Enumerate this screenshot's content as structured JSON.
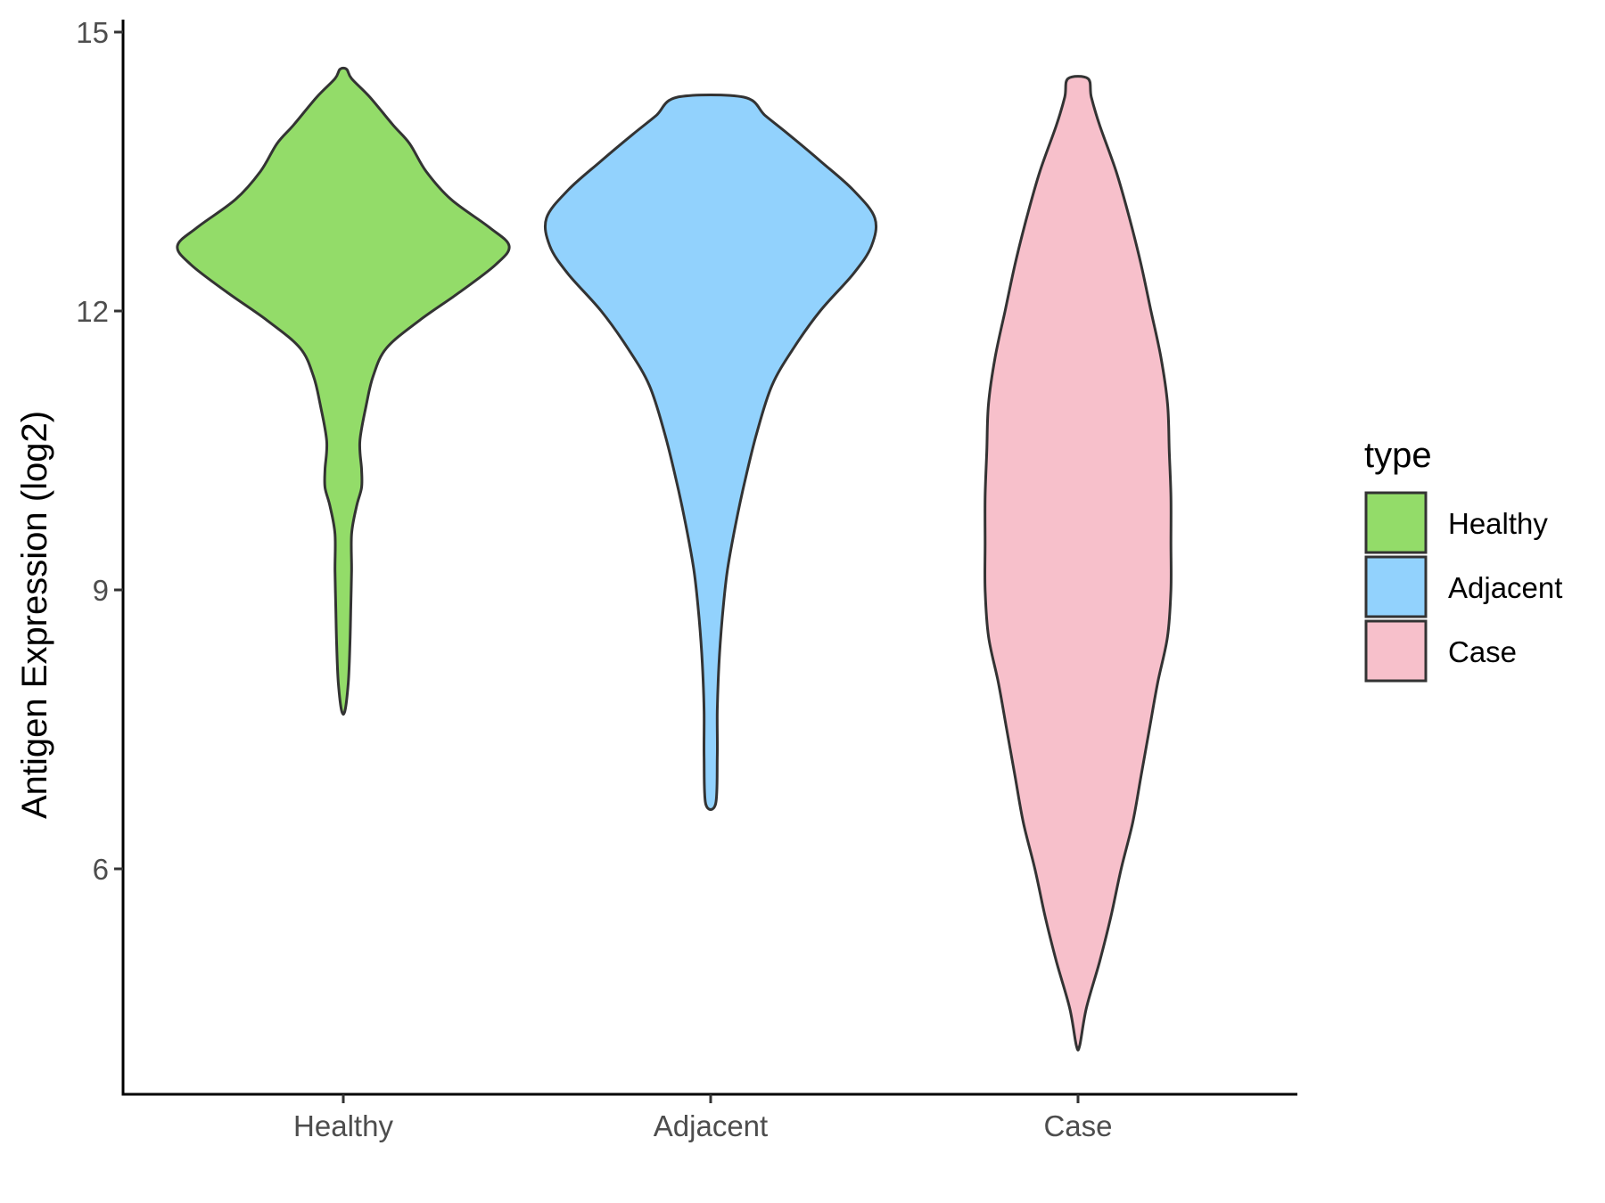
{
  "chart_data": {
    "type": "violin",
    "xlabel": "",
    "ylabel": "Antigen Expression (log2)",
    "ylim": [
      3.2,
      15.1
    ],
    "yticks": [
      6,
      9,
      12,
      15
    ],
    "categories": [
      "Healthy",
      "Adjacent",
      "Case"
    ],
    "grid": false,
    "legend": {
      "title": "type",
      "position": "right",
      "entries": [
        "Healthy",
        "Adjacent",
        "Case"
      ]
    },
    "series": [
      {
        "name": "Healthy",
        "color": "#93DC69",
        "min": 7.7,
        "max": 14.6,
        "density": [
          [
            7.7,
            0.01
          ],
          [
            8.0,
            0.03
          ],
          [
            8.4,
            0.04
          ],
          [
            8.8,
            0.045
          ],
          [
            9.2,
            0.05
          ],
          [
            9.6,
            0.05
          ],
          [
            9.9,
            0.08
          ],
          [
            10.1,
            0.11
          ],
          [
            10.3,
            0.11
          ],
          [
            10.6,
            0.1
          ],
          [
            11.0,
            0.14
          ],
          [
            11.3,
            0.18
          ],
          [
            11.6,
            0.26
          ],
          [
            11.9,
            0.46
          ],
          [
            12.2,
            0.7
          ],
          [
            12.5,
            0.92
          ],
          [
            12.7,
            1.0
          ],
          [
            12.9,
            0.88
          ],
          [
            13.2,
            0.65
          ],
          [
            13.5,
            0.5
          ],
          [
            13.8,
            0.4
          ],
          [
            14.0,
            0.3
          ],
          [
            14.3,
            0.16
          ],
          [
            14.5,
            0.05
          ],
          [
            14.6,
            0.02
          ]
        ]
      },
      {
        "name": "Adjacent",
        "color": "#92D2FD",
        "min": 6.7,
        "max": 14.3,
        "density": [
          [
            6.7,
            0.03
          ],
          [
            7.2,
            0.04
          ],
          [
            7.7,
            0.04
          ],
          [
            8.2,
            0.05
          ],
          [
            8.7,
            0.07
          ],
          [
            9.2,
            0.1
          ],
          [
            9.7,
            0.15
          ],
          [
            10.2,
            0.21
          ],
          [
            10.7,
            0.28
          ],
          [
            11.2,
            0.37
          ],
          [
            11.6,
            0.5
          ],
          [
            12.0,
            0.66
          ],
          [
            12.4,
            0.86
          ],
          [
            12.7,
            0.97
          ],
          [
            13.0,
            0.99
          ],
          [
            13.3,
            0.86
          ],
          [
            13.6,
            0.67
          ],
          [
            13.9,
            0.47
          ],
          [
            14.1,
            0.33
          ],
          [
            14.3,
            0.2
          ]
        ]
      },
      {
        "name": "Case",
        "color": "#F7C0CB",
        "min": 4.1,
        "max": 14.5,
        "density": [
          [
            4.1,
            0.01
          ],
          [
            4.5,
            0.05
          ],
          [
            5.0,
            0.13
          ],
          [
            5.5,
            0.2
          ],
          [
            6.0,
            0.26
          ],
          [
            6.5,
            0.33
          ],
          [
            7.0,
            0.38
          ],
          [
            7.5,
            0.43
          ],
          [
            8.0,
            0.48
          ],
          [
            8.5,
            0.54
          ],
          [
            9.0,
            0.56
          ],
          [
            9.5,
            0.56
          ],
          [
            10.0,
            0.56
          ],
          [
            10.5,
            0.55
          ],
          [
            11.0,
            0.54
          ],
          [
            11.5,
            0.5
          ],
          [
            12.0,
            0.44
          ],
          [
            12.5,
            0.38
          ],
          [
            13.0,
            0.31
          ],
          [
            13.5,
            0.23
          ],
          [
            14.0,
            0.13
          ],
          [
            14.3,
            0.08
          ],
          [
            14.5,
            0.06
          ]
        ]
      }
    ]
  }
}
